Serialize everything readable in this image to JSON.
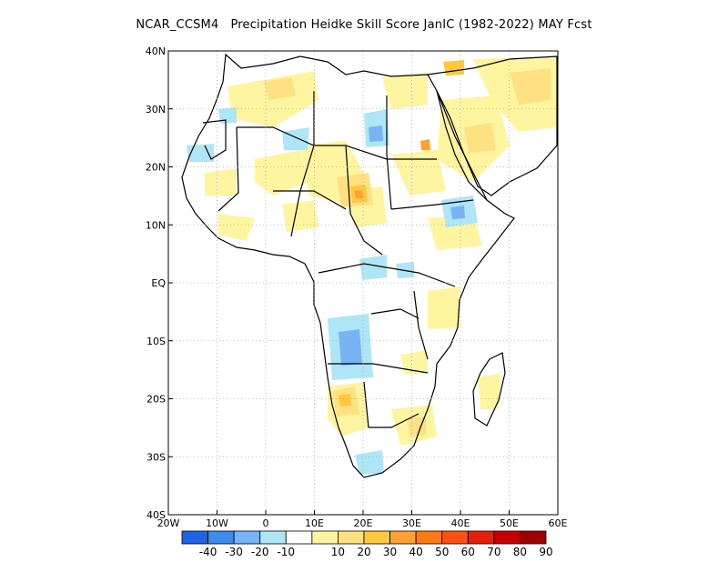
{
  "title": "NCAR_CCSM4   Precipitation Heidke Skill Score JanIC (1982-2022) MAY Fcst",
  "map": {
    "lon_range": [
      -20,
      60
    ],
    "lat_range": [
      -40,
      40
    ],
    "x_ticks": [
      "20W",
      "10W",
      "0",
      "10E",
      "20E",
      "30E",
      "40E",
      "50E",
      "60E"
    ],
    "y_ticks": [
      "40N",
      "30N",
      "20N",
      "10N",
      "EQ",
      "10S",
      "20S",
      "30S",
      "40S"
    ],
    "grid": true,
    "grid_style": "dotted"
  },
  "colorbar": {
    "colors": [
      "#1e64e6",
      "#3c8cf0",
      "#78b4f5",
      "#aee6f8",
      "#ffffff",
      "#fff5a0",
      "#ffe182",
      "#ffc83c",
      "#ffa032",
      "#ff7a14",
      "#ff5014",
      "#e61e0a",
      "#c80000",
      "#a00000"
    ],
    "labels": [
      "-40",
      "-30",
      "-20",
      "-10",
      "10",
      "20",
      "30",
      "40",
      "50",
      "60",
      "70",
      "80",
      "90"
    ]
  }
}
